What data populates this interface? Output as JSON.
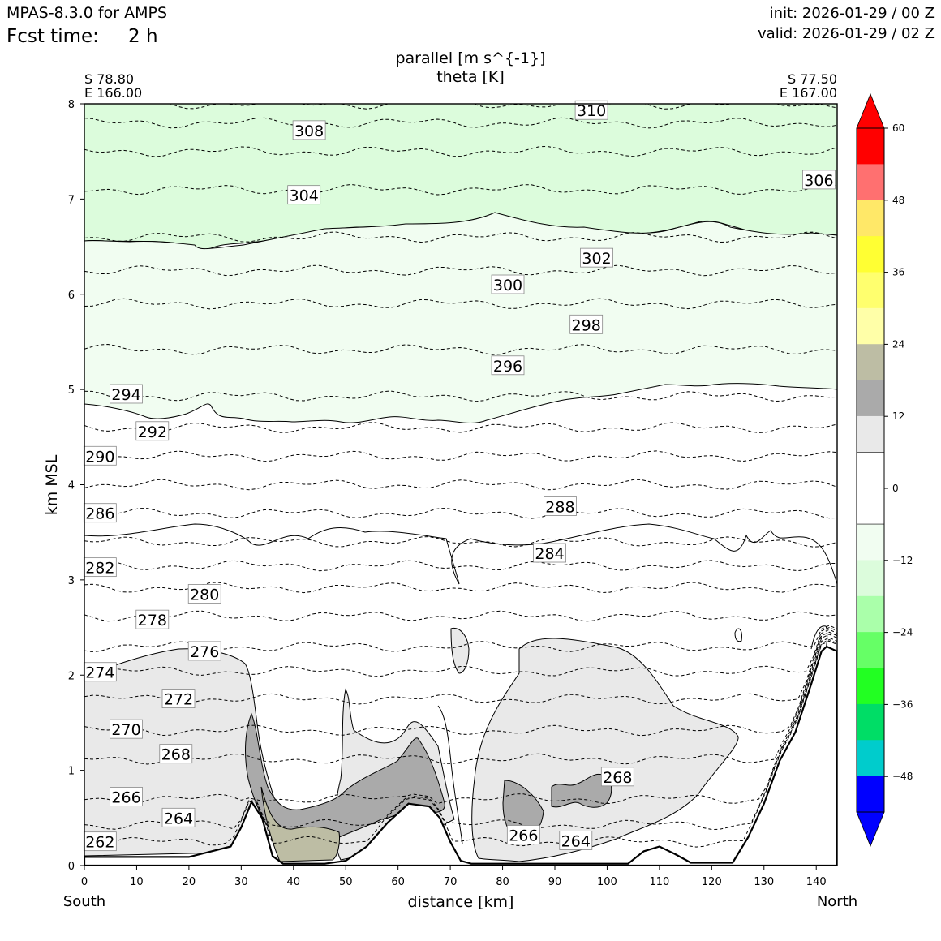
{
  "header": {
    "model": "MPAS-8.3.0 for AMPS",
    "fcst_label": "Fcst time:",
    "fcst_value": "2 h",
    "init": "init: 2026-01-29 / 00 Z",
    "valid": "valid: 2026-01-29 / 02 Z"
  },
  "endpoints": {
    "left_lat": "S 78.80",
    "left_lon": "E 166.00",
    "right_lat": "S 77.50",
    "right_lon": "E 167.00",
    "left_dir": "South",
    "right_dir": "North"
  },
  "colors": {
    "land": "#ffffff",
    "shade_light": "#e9e9e9",
    "shade_mid": "#aaaaaa",
    "shade_khaki": "#bdbda4",
    "green_pale": "#f1fdf1",
    "green_light": "#dcfcdc"
  },
  "chart_data": {
    "type": "contour-cross-section",
    "title": "parallel [m s^{-1}]",
    "subtitle": "theta [K]",
    "xlabel": "distance [km]",
    "ylabel": "km MSL",
    "xlim": [
      0,
      144
    ],
    "ylim": [
      0,
      8
    ],
    "xticks": [
      0,
      10,
      20,
      30,
      40,
      50,
      60,
      70,
      80,
      90,
      100,
      110,
      120,
      130,
      140
    ],
    "yticks": [
      0,
      1,
      2,
      3,
      4,
      5,
      6,
      7,
      8
    ],
    "terrain": [
      [
        0,
        0.09
      ],
      [
        20,
        0.09
      ],
      [
        28,
        0.2
      ],
      [
        30,
        0.4
      ],
      [
        32,
        0.67
      ],
      [
        34,
        0.5
      ],
      [
        36,
        0.1
      ],
      [
        38,
        0.02
      ],
      [
        46,
        0.02
      ],
      [
        50,
        0.05
      ],
      [
        54,
        0.2
      ],
      [
        58,
        0.45
      ],
      [
        62,
        0.65
      ],
      [
        66,
        0.62
      ],
      [
        68,
        0.5
      ],
      [
        70,
        0.25
      ],
      [
        72,
        0.05
      ],
      [
        74,
        0.02
      ],
      [
        104,
        0.02
      ],
      [
        107,
        0.15
      ],
      [
        110,
        0.2
      ],
      [
        113,
        0.12
      ],
      [
        116,
        0.03
      ],
      [
        124,
        0.03
      ],
      [
        127,
        0.3
      ],
      [
        130,
        0.65
      ],
      [
        133,
        1.1
      ],
      [
        136,
        1.4
      ],
      [
        139,
        1.9
      ],
      [
        141,
        2.25
      ],
      [
        142,
        2.3
      ],
      [
        144,
        2.25
      ]
    ],
    "theta_labels": [
      {
        "value": "310",
        "x": 97,
        "z": 7.93
      },
      {
        "value": "308",
        "x": 43,
        "z": 7.72
      },
      {
        "value": "306",
        "x": 140.5,
        "z": 7.2
      },
      {
        "value": "304",
        "x": 42,
        "z": 7.04
      },
      {
        "value": "302",
        "x": 98,
        "z": 6.38
      },
      {
        "value": "300",
        "x": 81,
        "z": 6.1
      },
      {
        "value": "298",
        "x": 96,
        "z": 5.68
      },
      {
        "value": "296",
        "x": 81,
        "z": 5.25
      },
      {
        "value": "294",
        "x": 8,
        "z": 4.95
      },
      {
        "value": "292",
        "x": 13,
        "z": 4.56
      },
      {
        "value": "290",
        "x": 3,
        "z": 4.3
      },
      {
        "value": "288",
        "x": 91,
        "z": 3.77
      },
      {
        "value": "286",
        "x": 3,
        "z": 3.7
      },
      {
        "value": "284",
        "x": 89,
        "z": 3.28
      },
      {
        "value": "282",
        "x": 3,
        "z": 3.13
      },
      {
        "value": "280",
        "x": 23,
        "z": 2.85
      },
      {
        "value": "278",
        "x": 13,
        "z": 2.58
      },
      {
        "value": "276",
        "x": 23,
        "z": 2.25
      },
      {
        "value": "274",
        "x": 3,
        "z": 2.03
      },
      {
        "value": "272",
        "x": 18,
        "z": 1.75
      },
      {
        "value": "270",
        "x": 8,
        "z": 1.43
      },
      {
        "value": "268",
        "x": 17.5,
        "z": 1.17
      },
      {
        "value": "266",
        "x": 8,
        "z": 0.72
      },
      {
        "value": "264",
        "x": 18,
        "z": 0.5
      },
      {
        "value": "262",
        "x": 3,
        "z": 0.25
      },
      {
        "value": "268",
        "x": 102,
        "z": 0.93
      },
      {
        "value": "266",
        "x": 84,
        "z": 0.32
      },
      {
        "value": "264",
        "x": 94,
        "z": 0.26
      }
    ],
    "theta_lines": [
      {
        "value": 310,
        "z": 8.0
      },
      {
        "value": 308,
        "z": 7.8
      },
      {
        "value": 306,
        "z": 7.5
      },
      {
        "value": 304,
        "z": 7.1
      },
      {
        "value": 302,
        "z": 6.6
      },
      {
        "value": 300,
        "z": 6.25
      },
      {
        "value": 298,
        "z": 5.9
      },
      {
        "value": 296,
        "z": 5.42
      },
      {
        "value": 294,
        "z": 4.93
      },
      {
        "value": 292,
        "z": 4.6
      },
      {
        "value": 290,
        "z": 4.3
      },
      {
        "value": 288,
        "z": 4.0
      },
      {
        "value": 286,
        "z": 3.7
      },
      {
        "value": 284,
        "z": 3.4
      },
      {
        "value": 282,
        "z": 3.15
      },
      {
        "value": 280,
        "z": 2.92
      },
      {
        "value": 278,
        "z": 2.62
      },
      {
        "value": 276,
        "z": 2.3
      },
      {
        "value": 274,
        "z": 2.04
      },
      {
        "value": 272,
        "z": 1.75
      },
      {
        "value": 270,
        "z": 1.42
      },
      {
        "value": 268,
        "z": 1.12
      },
      {
        "value": 266,
        "z": 0.7
      },
      {
        "value": 264,
        "z": 0.43
      },
      {
        "value": 262,
        "z": 0.25
      }
    ],
    "colorbar": {
      "ticks": [
        "60",
        "48",
        "36",
        "24",
        "12",
        "0",
        "−12",
        "−24",
        "−36",
        "−48"
      ],
      "colors": [
        "#ff0000",
        "#ff7070",
        "#ffe868",
        "#ffff33",
        "#ffff6e",
        "#ffffa8",
        "#bdbda4",
        "#aaaaaa",
        "#e9e9e9",
        "#ffffff",
        "#ffffff",
        "#f1fdf1",
        "#dcfcdc",
        "#aaffaa",
        "#66ff66",
        "#22ff22",
        "#00dd66",
        "#00cccc",
        "#0000ff"
      ],
      "max_extend_color": "#ff0000",
      "min_extend_color": "#0000ff"
    }
  }
}
